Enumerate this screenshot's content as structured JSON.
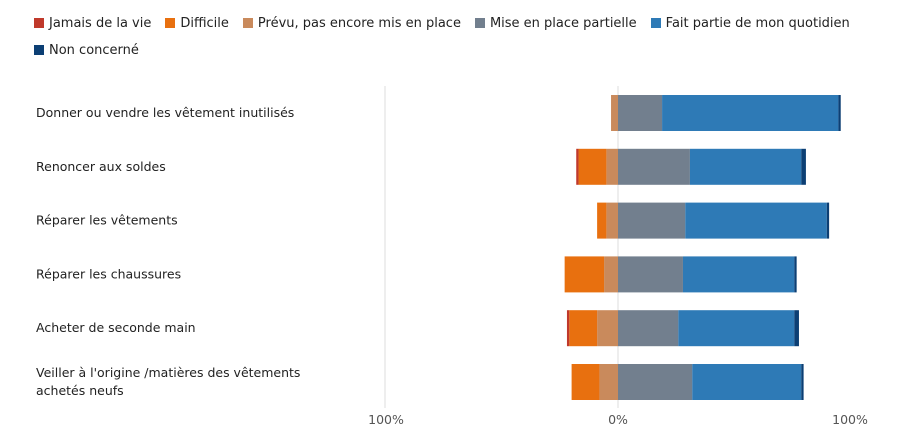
{
  "colors": {
    "Jamais de la vie": "#c0392b",
    "Difficile": "#e8700f",
    "Prévu, pas encore mis en place": "#c98a5c",
    "Mise en place partielle": "#727f8e",
    "Fait partie de mon quotidien": "#2e7ab6",
    "Non concerné": "#0c3f74"
  },
  "chart_data": {
    "type": "bar",
    "orientation": "horizontal",
    "stacked": "diverging",
    "legend_position": "top",
    "grid": false,
    "xlim": [
      -100,
      100
    ],
    "ticks": [
      {
        "value": -100,
        "label": "100%"
      },
      {
        "value": 0,
        "label": "0%"
      },
      {
        "value": 100,
        "label": "100%"
      }
    ],
    "categories": [
      "Donner ou vendre les vêtement inutilisés",
      "Renoncer aux soldes",
      "Réparer les vêtements",
      "Réparer les chaussures",
      "Acheter de seconde main",
      "Veiller à l'origine /matières des vêtements achetés neufs"
    ],
    "series": [
      {
        "name": "Jamais de la vie",
        "side": "negative",
        "values": [
          0,
          1,
          0,
          0,
          1,
          0
        ]
      },
      {
        "name": "Difficile",
        "side": "negative",
        "values": [
          0,
          12,
          4,
          17,
          12,
          12
        ]
      },
      {
        "name": "Prévu, pas encore mis en place",
        "side": "negative",
        "values": [
          3,
          5,
          5,
          6,
          9,
          8
        ]
      },
      {
        "name": "Mise en place partielle",
        "side": "positive",
        "values": [
          19,
          31,
          29,
          28,
          26,
          32
        ]
      },
      {
        "name": "Fait partie de mon quotidien",
        "side": "positive",
        "values": [
          76,
          48,
          61,
          48,
          50,
          47
        ]
      },
      {
        "name": "Non concerné",
        "side": "positive",
        "values": [
          1,
          2,
          1,
          1,
          2,
          1
        ]
      }
    ]
  }
}
